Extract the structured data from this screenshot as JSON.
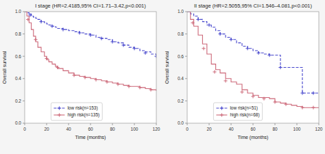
{
  "chart_data": [
    {
      "type": "step",
      "title": "I stage (HR=2.4185,95% CI=1.71–3.42,p<0.001)",
      "x_label": "Time (months)",
      "y_label": "Overall survival",
      "xlim": [
        0,
        120
      ],
      "ylim": [
        0.0,
        1.0
      ],
      "xticks": [
        0,
        20,
        40,
        60,
        80,
        100,
        120
      ],
      "yticks": [
        {
          "value": 0.0,
          "label": "0.0"
        },
        0.2,
        0.4,
        0.6,
        0.8,
        {
          "value": 1.0,
          "label": "1.0"
        }
      ],
      "grid": false,
      "legend": "lower left",
      "series": [
        {
          "name": "low risk(n=153)",
          "color": "#4444cc",
          "line_style": "dashed",
          "marker": "+",
          "x": [
            0,
            2,
            4,
            6,
            8,
            10,
            12,
            15,
            18,
            20,
            22,
            25,
            28,
            30,
            35,
            40,
            45,
            50,
            55,
            60,
            65,
            70,
            75,
            80,
            85,
            90,
            95,
            100,
            105,
            110,
            115,
            120
          ],
          "values": [
            1.0,
            0.99,
            0.98,
            0.96,
            0.95,
            0.94,
            0.93,
            0.91,
            0.9,
            0.89,
            0.88,
            0.87,
            0.86,
            0.85,
            0.84,
            0.83,
            0.82,
            0.81,
            0.8,
            0.79,
            0.77,
            0.76,
            0.75,
            0.73,
            0.72,
            0.7,
            0.68,
            0.67,
            0.65,
            0.64,
            0.62,
            0.6
          ],
          "censor_x": [
            5,
            15,
            25,
            35,
            50,
            60,
            70,
            80,
            90,
            100,
            110,
            120
          ],
          "censor_values": [
            0.97,
            0.91,
            0.87,
            0.84,
            0.81,
            0.79,
            0.76,
            0.73,
            0.7,
            0.67,
            0.63,
            0.6
          ]
        },
        {
          "name": "high risk(n=135)",
          "color": "#cc6677",
          "line_style": "solid",
          "marker": "+",
          "x": [
            0,
            2,
            4,
            6,
            8,
            10,
            12,
            15,
            18,
            20,
            22,
            25,
            28,
            30,
            35,
            40,
            45,
            50,
            55,
            60,
            65,
            70,
            75,
            80,
            85,
            90,
            95,
            100,
            105,
            110,
            115,
            120
          ],
          "values": [
            1.0,
            0.96,
            0.9,
            0.84,
            0.78,
            0.73,
            0.68,
            0.64,
            0.6,
            0.57,
            0.55,
            0.53,
            0.51,
            0.49,
            0.47,
            0.45,
            0.43,
            0.42,
            0.41,
            0.4,
            0.39,
            0.38,
            0.37,
            0.36,
            0.35,
            0.34,
            0.33,
            0.33,
            0.32,
            0.31,
            0.3,
            0.29
          ],
          "censor_x": [
            3,
            10,
            20,
            30,
            45,
            55,
            65,
            75,
            85,
            95,
            105,
            115
          ],
          "censor_values": [
            0.93,
            0.75,
            0.58,
            0.5,
            0.43,
            0.41,
            0.39,
            0.37,
            0.35,
            0.33,
            0.32,
            0.3
          ]
        }
      ]
    },
    {
      "type": "step",
      "title": "II stage (HR=2.5055,95% CI=1.546–4.081,p<0.001)",
      "x_label": "Time (months)",
      "y_label": "Overall survival",
      "xlim": [
        0,
        120
      ],
      "ylim": [
        0.0,
        1.0
      ],
      "xticks": [
        0,
        20,
        40,
        60,
        80,
        100,
        120
      ],
      "yticks": [
        {
          "value": 0.0,
          "label": "0.0"
        },
        0.2,
        0.4,
        0.6,
        0.8,
        {
          "value": 1.0,
          "label": "1.0"
        }
      ],
      "grid": false,
      "legend": "lower left",
      "series": [
        {
          "name": "low risk(n=51)",
          "color": "#4444cc",
          "line_style": "dashed",
          "marker": "+",
          "x": [
            0,
            3,
            6,
            10,
            14,
            18,
            22,
            26,
            30,
            35,
            40,
            45,
            50,
            55,
            60,
            65,
            70,
            75,
            80,
            85,
            90,
            95,
            100,
            105,
            110,
            115,
            120
          ],
          "values": [
            1.0,
            0.98,
            0.96,
            0.93,
            0.91,
            0.88,
            0.86,
            0.83,
            0.8,
            0.77,
            0.75,
            0.72,
            0.69,
            0.67,
            0.65,
            0.63,
            0.62,
            0.61,
            0.61,
            0.5,
            0.5,
            0.5,
            0.5,
            0.27,
            0.27,
            0.27,
            0.27
          ],
          "censor_x": [
            10,
            20,
            30,
            40,
            55,
            65,
            75,
            85,
            105,
            115
          ],
          "censor_values": [
            0.93,
            0.88,
            0.8,
            0.75,
            0.67,
            0.63,
            0.61,
            0.5,
            0.27,
            0.27
          ]
        },
        {
          "name": "high risk(n=68)",
          "color": "#cc6677",
          "line_style": "solid",
          "marker": "+",
          "x": [
            0,
            3,
            6,
            10,
            14,
            18,
            22,
            26,
            30,
            35,
            40,
            45,
            50,
            55,
            60,
            65,
            70,
            75,
            80,
            85,
            90,
            95,
            100,
            105,
            110,
            115,
            120
          ],
          "values": [
            1.0,
            0.93,
            0.87,
            0.79,
            0.71,
            0.62,
            0.53,
            0.48,
            0.45,
            0.4,
            0.37,
            0.35,
            0.3,
            0.27,
            0.25,
            0.23,
            0.23,
            0.22,
            0.19,
            0.18,
            0.17,
            0.16,
            0.15,
            0.14,
            0.14,
            0.14,
            0.14
          ],
          "censor_x": [
            5,
            15,
            25,
            35,
            50,
            60,
            70,
            80,
            90,
            105,
            115
          ],
          "censor_values": [
            0.9,
            0.67,
            0.46,
            0.38,
            0.28,
            0.24,
            0.22,
            0.19,
            0.17,
            0.14,
            0.14
          ]
        }
      ]
    }
  ]
}
